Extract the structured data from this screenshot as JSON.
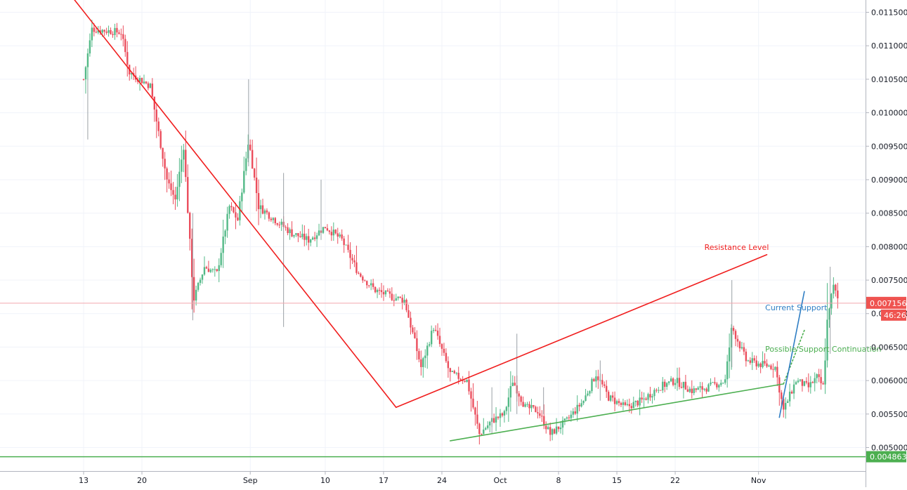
{
  "chart_data": {
    "type": "candlestick",
    "title": "",
    "xlabel": "",
    "ylabel": "",
    "ylim": [
      0.0048,
      0.0117
    ],
    "grid": true,
    "price_axis_position": "right",
    "y_ticks": [
      "0.011500",
      "0.011000",
      "0.010500",
      "0.010000",
      "0.009500",
      "0.009000",
      "0.008500",
      "0.008000",
      "0.007500",
      "0.007000",
      "0.006500",
      "0.006000",
      "0.005500",
      "0.005000"
    ],
    "x_ticks": [
      "13",
      "20",
      "Sep",
      "10",
      "17",
      "24",
      "Oct",
      "8",
      "15",
      "22",
      "Nov"
    ],
    "current_price": {
      "value": "0.007156",
      "countdown": "46:26",
      "color": "#ef5350"
    },
    "horizontal_level": {
      "value": "0.004863",
      "color": "#4caf50"
    },
    "price_path": [
      {
        "t": 0.0,
        "v": 0.0105
      },
      {
        "t": 1.0,
        "v": 0.01125
      },
      {
        "t": 4.5,
        "v": 0.0112
      },
      {
        "t": 5.5,
        "v": 0.0106
      },
      {
        "t": 8.0,
        "v": 0.0104
      },
      {
        "t": 10.0,
        "v": 0.009
      },
      {
        "t": 11.0,
        "v": 0.0087
      },
      {
        "t": 12.0,
        "v": 0.0095
      },
      {
        "t": 13.2,
        "v": 0.0072
      },
      {
        "t": 14.5,
        "v": 0.0077
      },
      {
        "t": 16.0,
        "v": 0.0076
      },
      {
        "t": 17.5,
        "v": 0.0086
      },
      {
        "t": 18.5,
        "v": 0.0084
      },
      {
        "t": 19.8,
        "v": 0.0096
      },
      {
        "t": 21.0,
        "v": 0.0086
      },
      {
        "t": 23.0,
        "v": 0.0084
      },
      {
        "t": 25.0,
        "v": 0.0082
      },
      {
        "t": 27.0,
        "v": 0.0081
      },
      {
        "t": 29.0,
        "v": 0.0083
      },
      {
        "t": 31.0,
        "v": 0.0081
      },
      {
        "t": 33.0,
        "v": 0.0076
      },
      {
        "t": 35.0,
        "v": 0.00735
      },
      {
        "t": 37.0,
        "v": 0.00725
      },
      {
        "t": 38.5,
        "v": 0.0072
      },
      {
        "t": 40.5,
        "v": 0.0062
      },
      {
        "t": 42.0,
        "v": 0.0068
      },
      {
        "t": 44.0,
        "v": 0.0061
      },
      {
        "t": 46.0,
        "v": 0.006
      },
      {
        "t": 47.5,
        "v": 0.0052
      },
      {
        "t": 49.0,
        "v": 0.0054
      },
      {
        "t": 50.5,
        "v": 0.0055
      },
      {
        "t": 51.5,
        "v": 0.006
      },
      {
        "t": 53.0,
        "v": 0.0056
      },
      {
        "t": 54.5,
        "v": 0.00555
      },
      {
        "t": 56.0,
        "v": 0.0052
      },
      {
        "t": 58.0,
        "v": 0.0054
      },
      {
        "t": 60.0,
        "v": 0.0057
      },
      {
        "t": 61.5,
        "v": 0.0061
      },
      {
        "t": 63.0,
        "v": 0.00575
      },
      {
        "t": 65.0,
        "v": 0.0056
      },
      {
        "t": 67.0,
        "v": 0.0057
      },
      {
        "t": 69.0,
        "v": 0.0059
      },
      {
        "t": 71.0,
        "v": 0.006
      },
      {
        "t": 73.0,
        "v": 0.00585
      },
      {
        "t": 75.0,
        "v": 0.0059
      },
      {
        "t": 77.0,
        "v": 0.006
      },
      {
        "t": 77.8,
        "v": 0.0068
      },
      {
        "t": 78.5,
        "v": 0.0066
      },
      {
        "t": 79.5,
        "v": 0.0063
      },
      {
        "t": 81.0,
        "v": 0.00625
      },
      {
        "t": 83.0,
        "v": 0.0062
      },
      {
        "t": 84.0,
        "v": 0.00555
      },
      {
        "t": 85.5,
        "v": 0.006
      },
      {
        "t": 87.0,
        "v": 0.0059
      },
      {
        "t": 88.0,
        "v": 0.00605
      },
      {
        "t": 88.8,
        "v": 0.0059
      },
      {
        "t": 89.3,
        "v": 0.007
      },
      {
        "t": 90.0,
        "v": 0.0074
      },
      {
        "t": 90.7,
        "v": 0.00715
      }
    ],
    "x_tick_days": [
      1,
      8,
      21,
      30,
      37,
      44,
      51,
      58,
      65,
      72,
      82
    ],
    "trend_lines": [
      {
        "name": "resistance-down",
        "color": "#f01e1e",
        "style": "solid",
        "points": [
          {
            "t": -1.5,
            "v": 0.01175
          },
          {
            "t": 37.5,
            "v": 0.0056
          }
        ]
      },
      {
        "name": "resistance-up",
        "color": "#f01e1e",
        "style": "solid",
        "points": [
          {
            "t": 37.5,
            "v": 0.0056
          },
          {
            "t": 82.0,
            "v": 0.00788
          }
        ]
      },
      {
        "name": "support-green",
        "color": "#4caf50",
        "style": "solid",
        "points": [
          {
            "t": 44.0,
            "v": 0.0051
          },
          {
            "t": 84.0,
            "v": 0.00595
          }
        ]
      },
      {
        "name": "support-green-continuation",
        "color": "#4caf50",
        "style": "dotted",
        "points": [
          {
            "t": 84.0,
            "v": 0.00595
          },
          {
            "t": 86.5,
            "v": 0.00675
          }
        ]
      },
      {
        "name": "support-blue",
        "color": "#2f7ec4",
        "style": "solid",
        "points": [
          {
            "t": 83.5,
            "v": 0.00545
          },
          {
            "t": 86.5,
            "v": 0.00733
          }
        ]
      }
    ],
    "annotations": [
      {
        "text": "Resistance Level",
        "color": "#f01e1e",
        "t": 74.5,
        "v": 0.00795
      },
      {
        "text": "Current Support",
        "color": "#2f7ec4",
        "t": 81.8,
        "v": 0.00705
      },
      {
        "text": "Possible Support Continuation",
        "color": "#4caf50",
        "t": 81.8,
        "v": 0.00643
      }
    ]
  }
}
